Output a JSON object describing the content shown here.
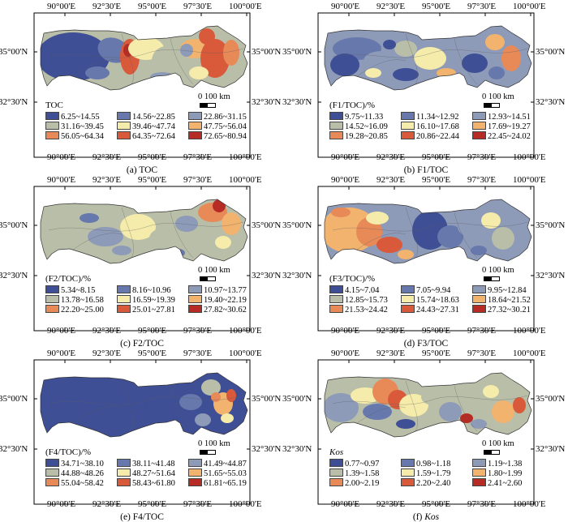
{
  "axes": {
    "lon_labels": [
      "90°00'E",
      "92°30'E",
      "95°00'E",
      "97°30'E",
      "100°00'E"
    ],
    "lat_labels": [
      "35°00'N",
      "32°30'N"
    ]
  },
  "scale": {
    "label": "0   100 km"
  },
  "panels": [
    {
      "id": "a",
      "caption_prefix": "(a) ",
      "caption_main": "TOC",
      "caption_italic": false,
      "legend_title": "TOC",
      "legend_title_italic": false,
      "classes": [
        {
          "label": "6.25~14.55",
          "color": "#3f4f96"
        },
        {
          "label": "14.56~22.85",
          "color": "#6778ad"
        },
        {
          "label": "22.86~31.15",
          "color": "#8d9ab8"
        },
        {
          "label": "31.16~39.45",
          "color": "#b9bea8"
        },
        {
          "label": "39.46~47.74",
          "color": "#f5ecab"
        },
        {
          "label": "47.75~56.04",
          "color": "#f2b36f"
        },
        {
          "label": "56.05~64.34",
          "color": "#e88a58"
        },
        {
          "label": "64.35~72.64",
          "color": "#d95a3b"
        },
        {
          "label": "72.65~80.94",
          "color": "#b62c25"
        }
      ]
    },
    {
      "id": "b",
      "caption_prefix": "(b) ",
      "caption_main": "F1/TOC",
      "caption_italic": false,
      "legend_title": "(F1/TOC)/%",
      "legend_title_italic": false,
      "classes": [
        {
          "label": "9.75~11.33",
          "color": "#3f4f96"
        },
        {
          "label": "11.34~12.92",
          "color": "#6778ad"
        },
        {
          "label": "12.93~14.51",
          "color": "#8d9ab8"
        },
        {
          "label": "14.52~16.09",
          "color": "#b9bea8"
        },
        {
          "label": "16.10~17.68",
          "color": "#f5ecab"
        },
        {
          "label": "17.69~19.27",
          "color": "#f2b36f"
        },
        {
          "label": "19.28~20.85",
          "color": "#e88a58"
        },
        {
          "label": "20.86~22.44",
          "color": "#d95a3b"
        },
        {
          "label": "22.45~24.02",
          "color": "#b62c25"
        }
      ]
    },
    {
      "id": "c",
      "caption_prefix": "(c) ",
      "caption_main": "F2/TOC",
      "caption_italic": false,
      "legend_title": "(F2/TOC)/%",
      "legend_title_italic": false,
      "classes": [
        {
          "label": "5.34~8.15",
          "color": "#3f4f96"
        },
        {
          "label": "8.16~10.96",
          "color": "#6778ad"
        },
        {
          "label": "10.97~13.77",
          "color": "#8d9ab8"
        },
        {
          "label": "13.78~16.58",
          "color": "#b9bea8"
        },
        {
          "label": "16.59~19.39",
          "color": "#f5ecab"
        },
        {
          "label": "19.40~22.19",
          "color": "#f2b36f"
        },
        {
          "label": "22.20~25.00",
          "color": "#e88a58"
        },
        {
          "label": "25.01~27.81",
          "color": "#d95a3b"
        },
        {
          "label": "27.82~30.62",
          "color": "#b62c25"
        }
      ]
    },
    {
      "id": "d",
      "caption_prefix": "(d) ",
      "caption_main": "F3/TOC",
      "caption_italic": false,
      "legend_title": "(F3/TOC)/%",
      "legend_title_italic": false,
      "classes": [
        {
          "label": "4.15~7.04",
          "color": "#3f4f96"
        },
        {
          "label": "7.05~9.94",
          "color": "#6778ad"
        },
        {
          "label": "9.95~12.84",
          "color": "#8d9ab8"
        },
        {
          "label": "12.85~15.73",
          "color": "#b9bea8"
        },
        {
          "label": "15.74~18.63",
          "color": "#f5ecab"
        },
        {
          "label": "18.64~21.52",
          "color": "#f2b36f"
        },
        {
          "label": "21.53~24.42",
          "color": "#e88a58"
        },
        {
          "label": "24.43~27.31",
          "color": "#d95a3b"
        },
        {
          "label": "27.32~30.21",
          "color": "#b62c25"
        }
      ]
    },
    {
      "id": "e",
      "caption_prefix": "(e) ",
      "caption_main": "F4/TOC",
      "caption_italic": false,
      "legend_title": "(F4/TOC)/%",
      "legend_title_italic": false,
      "classes": [
        {
          "label": "34.71~38.10",
          "color": "#3f4f96"
        },
        {
          "label": "38.11~41.48",
          "color": "#6778ad"
        },
        {
          "label": "41.49~44.87",
          "color": "#8d9ab8"
        },
        {
          "label": "44.88~48.26",
          "color": "#b9bea8"
        },
        {
          "label": "48.27~51.64",
          "color": "#f5ecab"
        },
        {
          "label": "51.65~55.03",
          "color": "#f2b36f"
        },
        {
          "label": "55.04~58.42",
          "color": "#e88a58"
        },
        {
          "label": "58.43~61.80",
          "color": "#d95a3b"
        },
        {
          "label": "61.81~65.19",
          "color": "#b62c25"
        }
      ]
    },
    {
      "id": "f",
      "caption_prefix": "(f) ",
      "caption_main": "Kos",
      "caption_italic": true,
      "legend_title": "Kos",
      "legend_title_italic": true,
      "classes": [
        {
          "label": "0.77~0.97",
          "color": "#3f4f96"
        },
        {
          "label": "0.98~1.18",
          "color": "#6778ad"
        },
        {
          "label": "1.19~1.38",
          "color": "#8d9ab8"
        },
        {
          "label": "1.39~1.58",
          "color": "#b9bea8"
        },
        {
          "label": "1.59~1.79",
          "color": "#f5ecab"
        },
        {
          "label": "1.80~1.99",
          "color": "#f2b36f"
        },
        {
          "label": "2.00~2.19",
          "color": "#e88a58"
        },
        {
          "label": "2.20~2.40",
          "color": "#d95a3b"
        },
        {
          "label": "2.41~2.60",
          "color": "#b62c25"
        }
      ]
    }
  ]
}
